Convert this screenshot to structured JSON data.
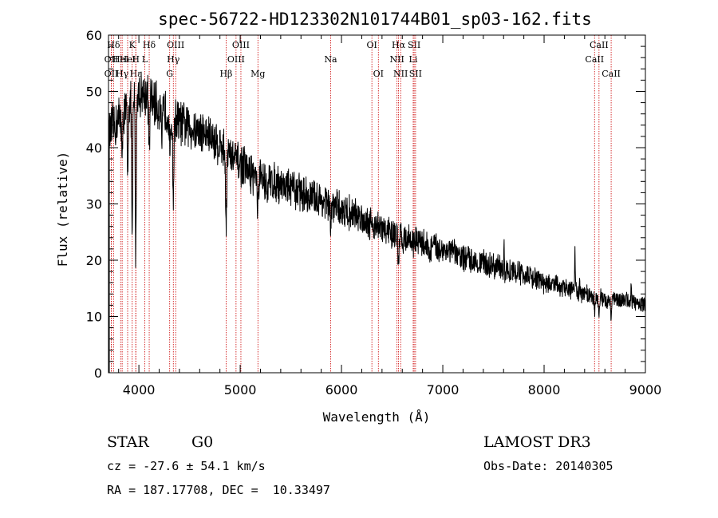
{
  "chart_data": {
    "type": "line",
    "title": "spec-56722-HD123302N101744B01_sp03-162.fits",
    "xlabel": "Wavelength (Å)",
    "ylabel": "Flux (relative)",
    "xlim": [
      3700,
      9000
    ],
    "ylim": [
      0,
      60
    ],
    "xticks": [
      4000,
      5000,
      6000,
      7000,
      8000,
      9000
    ],
    "yticks": [
      0,
      10,
      20,
      30,
      40,
      50,
      60
    ],
    "line_color": "#000000",
    "marker_color": "#cc0000",
    "continuum_anchors": [
      [
        3700,
        42
      ],
      [
        3800,
        45
      ],
      [
        3900,
        47
      ],
      [
        4000,
        50
      ],
      [
        4100,
        49
      ],
      [
        4200,
        47
      ],
      [
        4300,
        46
      ],
      [
        4400,
        44.5
      ],
      [
        4500,
        43.5
      ],
      [
        4600,
        43
      ],
      [
        4700,
        42
      ],
      [
        4800,
        40.5
      ],
      [
        4900,
        38.5
      ],
      [
        5000,
        37
      ],
      [
        5100,
        35.5
      ],
      [
        5200,
        34.5
      ],
      [
        5400,
        33.5
      ],
      [
        5600,
        32
      ],
      [
        5800,
        30.5
      ],
      [
        6000,
        29
      ],
      [
        6200,
        27.5
      ],
      [
        6400,
        25.5
      ],
      [
        6600,
        24
      ],
      [
        6800,
        23
      ],
      [
        7000,
        22
      ],
      [
        7200,
        20.5
      ],
      [
        7400,
        19.5
      ],
      [
        7600,
        18.5
      ],
      [
        7800,
        17.5
      ],
      [
        8000,
        16
      ],
      [
        8200,
        15
      ],
      [
        8400,
        14
      ],
      [
        8600,
        13
      ],
      [
        8800,
        13
      ],
      [
        9000,
        12
      ]
    ],
    "absorption_features": [
      {
        "center": 3934,
        "depth": 25,
        "width": 7
      },
      {
        "center": 3969,
        "depth": 28,
        "width": 7
      },
      {
        "center": 3889,
        "depth": 12,
        "width": 6
      },
      {
        "center": 3835,
        "depth": 10,
        "width": 6
      },
      {
        "center": 4102,
        "depth": 10,
        "width": 8
      },
      {
        "center": 4227,
        "depth": 8,
        "width": 7
      },
      {
        "center": 4308,
        "depth": 8,
        "width": 8
      },
      {
        "center": 4340,
        "depth": 14,
        "width": 8
      },
      {
        "center": 4861,
        "depth": 12,
        "width": 8
      },
      {
        "center": 5175,
        "depth": 5,
        "width": 12
      },
      {
        "center": 5270,
        "depth": 4,
        "width": 6
      },
      {
        "center": 5893,
        "depth": 4,
        "width": 8
      },
      {
        "center": 6563,
        "depth": 6,
        "width": 7
      },
      {
        "center": 6870,
        "depth": 2,
        "width": 12
      },
      {
        "center": 7600,
        "depth": 2,
        "width": 10
      },
      {
        "center": 8500,
        "depth": 3,
        "width": 6
      },
      {
        "center": 8542,
        "depth": 4,
        "width": 6
      },
      {
        "center": 8662,
        "depth": 3,
        "width": 6
      }
    ],
    "emission_spikes": [
      {
        "center": 5578,
        "height": 3,
        "width": 3
      },
      {
        "center": 7605,
        "height": 6,
        "width": 3
      },
      {
        "center": 8305,
        "height": 8,
        "width": 4
      },
      {
        "center": 8350,
        "height": 4,
        "width": 3
      },
      {
        "center": 8860,
        "height": 4,
        "width": 3
      }
    ],
    "noise": {
      "amplitude_blue": 5,
      "amplitude_red": 1.5
    },
    "line_markers": [
      {
        "label": "Hδ",
        "wavelength": 3750,
        "row": 0
      },
      {
        "label": "OII",
        "wavelength": 3727,
        "row": 1
      },
      {
        "label": "OII",
        "wavelength": 3727,
        "row": 2
      },
      {
        "label": "HeI",
        "wavelength": 3820,
        "row": 1
      },
      {
        "label": "Hγ",
        "wavelength": 3835,
        "row": 2
      },
      {
        "label": "K",
        "wavelength": 3934,
        "row": 0
      },
      {
        "label": "HeI",
        "wavelength": 3889,
        "row": 1
      },
      {
        "label": "Hε",
        "wavelength": 3970,
        "row": 2
      },
      {
        "label": "H",
        "wavelength": 3969,
        "row": 1
      },
      {
        "label": "Hδ",
        "wavelength": 4102,
        "row": 0
      },
      {
        "label": "L",
        "wavelength": 4058,
        "row": 1
      },
      {
        "label": "OIII",
        "wavelength": 4363,
        "row": 0
      },
      {
        "label": "Hγ",
        "wavelength": 4340,
        "row": 1
      },
      {
        "label": "G",
        "wavelength": 4304,
        "row": 2
      },
      {
        "label": "Hβ",
        "wavelength": 4861,
        "row": 2
      },
      {
        "label": "OIII",
        "wavelength": 5007,
        "row": 0
      },
      {
        "label": "OIII",
        "wavelength": 4959,
        "row": 1
      },
      {
        "label": "Mg",
        "wavelength": 5175,
        "row": 2
      },
      {
        "label": "Na",
        "wavelength": 5893,
        "row": 1
      },
      {
        "label": "OI",
        "wavelength": 6300,
        "row": 0
      },
      {
        "label": "OI",
        "wavelength": 6364,
        "row": 2
      },
      {
        "label": "Hα",
        "wavelength": 6563,
        "row": 0
      },
      {
        "label": "SII",
        "wavelength": 6717,
        "row": 0
      },
      {
        "label": "NII",
        "wavelength": 6548,
        "row": 1
      },
      {
        "label": "Li",
        "wavelength": 6708,
        "row": 1
      },
      {
        "label": "NII",
        "wavelength": 6584,
        "row": 2
      },
      {
        "label": "SII",
        "wavelength": 6731,
        "row": 2
      },
      {
        "label": "CaII",
        "wavelength": 8542,
        "row": 0
      },
      {
        "label": "CaII",
        "wavelength": 8498,
        "row": 1
      },
      {
        "label": "CaII",
        "wavelength": 8662,
        "row": 2
      }
    ]
  },
  "info": {
    "object_class": "STAR",
    "subclass": "G0",
    "survey": "LAMOST DR3",
    "redshift": "cz = -27.6 ± 54.1 km/s",
    "obs_date": "Obs-Date: 20140305",
    "coords": "RA = 187.17708, DEC =  10.33497"
  }
}
